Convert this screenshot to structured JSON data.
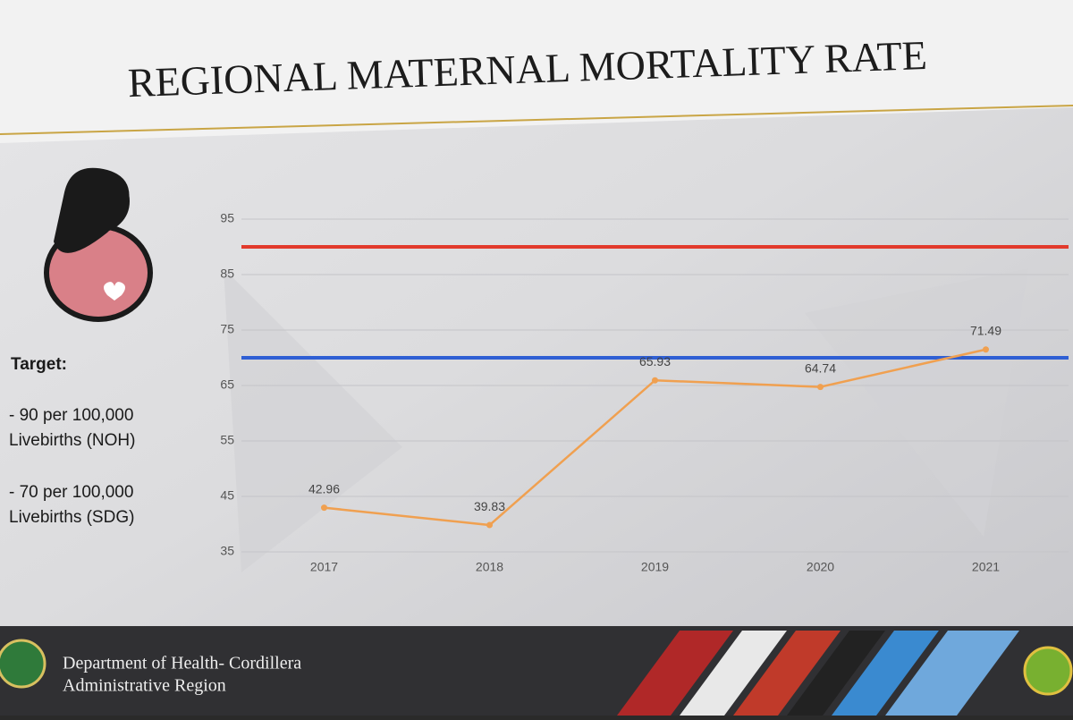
{
  "chart_data": {
    "type": "line",
    "title": "REGIONAL MATERNAL MORTALITY RATE",
    "categories": [
      "2017",
      "2018",
      "2019",
      "2020",
      "2021"
    ],
    "series": [
      {
        "color": "#f0a050",
        "values": [
          42.96,
          39.83,
          65.93,
          64.74,
          71.49
        ]
      }
    ],
    "ylim": [
      35,
      95
    ],
    "yticks": [
      35,
      45,
      55,
      65,
      75,
      85,
      95
    ],
    "grid": true,
    "reference_lines": [
      {
        "value": 90,
        "color": "#e23a2c"
      },
      {
        "value": 70,
        "color": "#2f5fd4"
      }
    ]
  },
  "target": {
    "heading": "Target:",
    "items": [
      [
        "- 90 per 100,000",
        "Livebirths (NOH)"
      ],
      [
        "- 70 per 100,000",
        "Livebirths (SDG)"
      ]
    ]
  },
  "footer": {
    "lines": [
      "Department of Health- Cordillera",
      "Administrative Region"
    ]
  }
}
